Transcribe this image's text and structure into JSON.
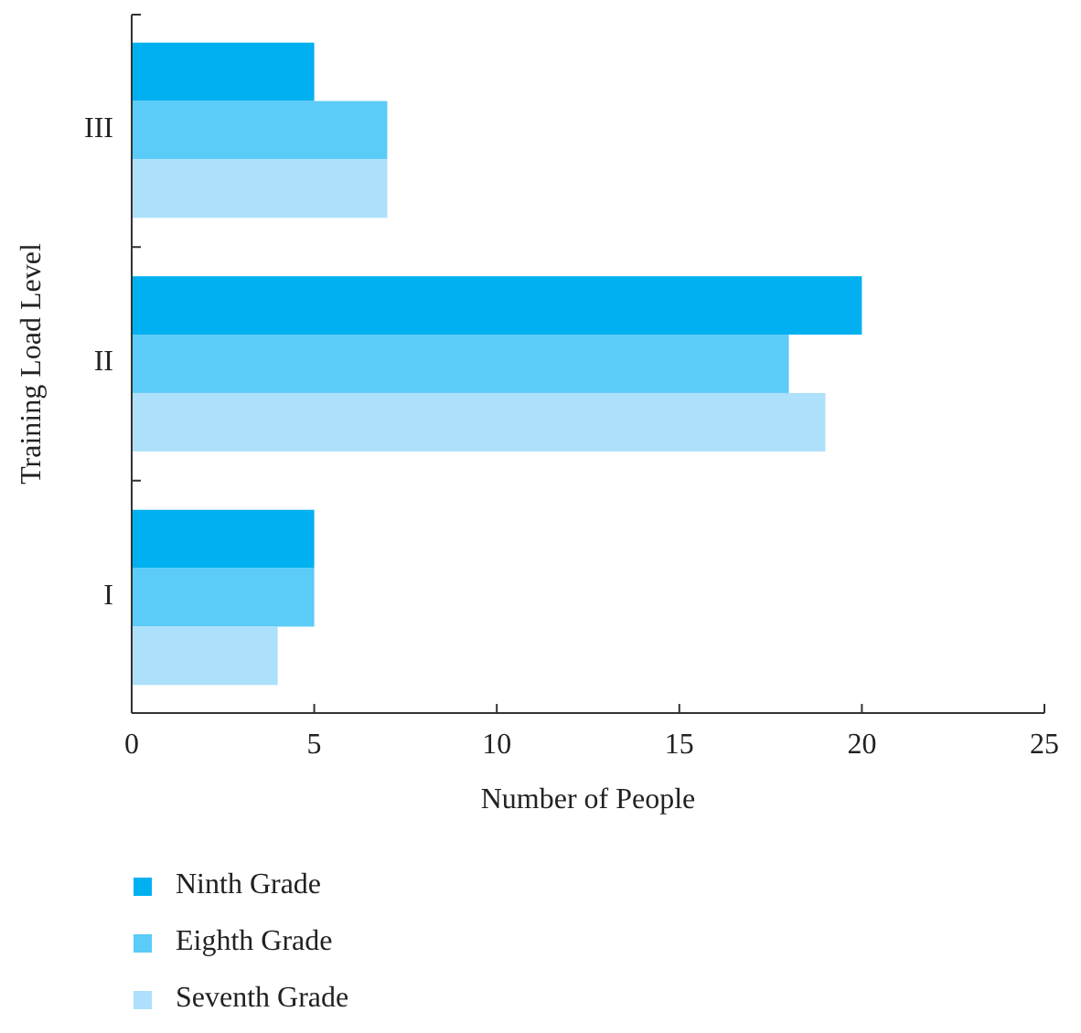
{
  "chart_data": {
    "type": "bar",
    "orientation": "horizontal",
    "xlabel": "Number of People",
    "ylabel": "Training Load Level",
    "categories": [
      "III",
      "II",
      "I"
    ],
    "series": [
      {
        "name": "Ninth Grade",
        "color": "#00b0f0",
        "values": [
          5,
          20,
          5
        ]
      },
      {
        "name": "Eighth Grade",
        "color": "#5bcbf7",
        "values": [
          7,
          18,
          5
        ]
      },
      {
        "name": "Seventh Grade",
        "color": "#ade0fa",
        "values": [
          7,
          19,
          4
        ]
      }
    ],
    "xlim": [
      0,
      25
    ],
    "xticks": [
      0,
      5,
      10,
      15,
      20,
      25
    ],
    "grid": false,
    "legend": "bottom left"
  }
}
